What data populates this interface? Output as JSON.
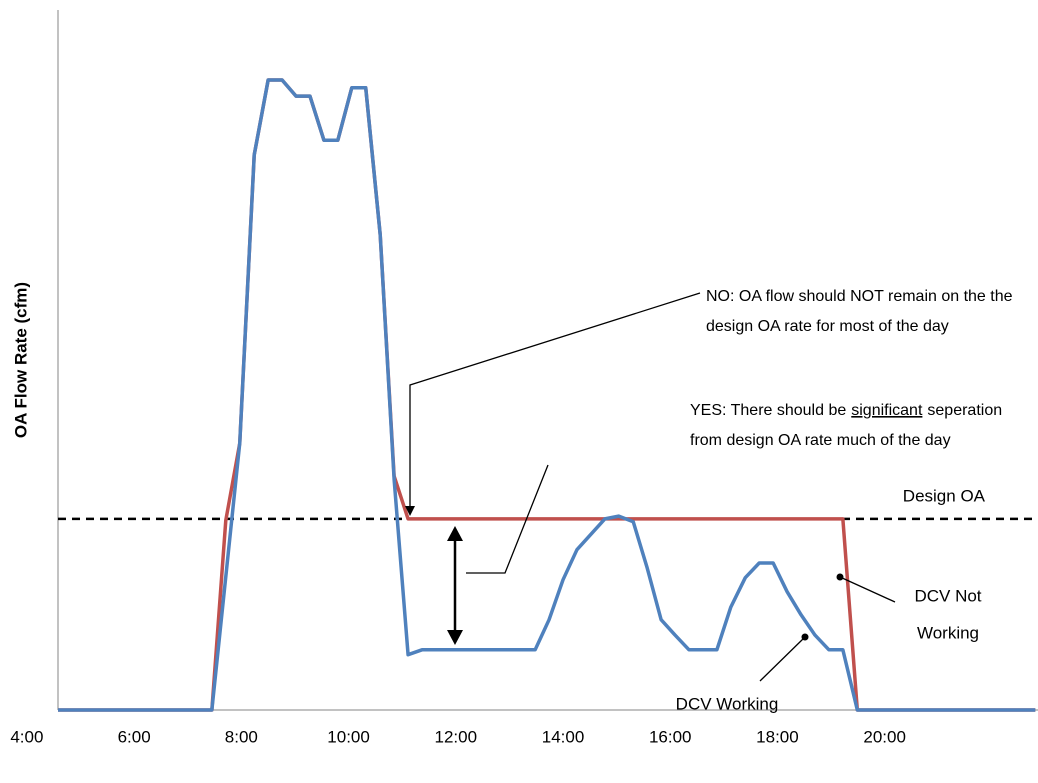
{
  "chart_data": {
    "type": "line",
    "y_label": "OA Flow Rate (cfm)",
    "xlim": [
      4.58,
      22.86
    ],
    "ylim": [
      0,
      100
    ],
    "xticks": [
      {
        "value": 4,
        "label": "4:00"
      },
      {
        "value": 6,
        "label": "6:00"
      },
      {
        "value": 8,
        "label": "8:00"
      },
      {
        "value": 10,
        "label": "10:00"
      },
      {
        "value": 12,
        "label": "12:00"
      },
      {
        "value": 14,
        "label": "14:00"
      },
      {
        "value": 16,
        "label": "16:00"
      },
      {
        "value": 18,
        "label": "18:00"
      },
      {
        "value": 20,
        "label": "20:00"
      }
    ],
    "grid": false,
    "reference_line": {
      "label": "Design OA",
      "value": 27.3,
      "color": "#000000"
    },
    "series": [
      {
        "name": "DCV Not Working",
        "color": "#c0504d",
        "x": [
          4.58,
          7.45,
          7.71,
          7.97,
          8.24,
          8.5,
          8.76,
          9.02,
          9.28,
          9.54,
          9.8,
          10.06,
          10.32,
          10.59,
          10.85,
          11.11,
          19.22,
          19.49,
          22.81
        ],
        "values": [
          0,
          0,
          27.1,
          38.1,
          79.3,
          90,
          90,
          87.7,
          87.7,
          81.4,
          81.4,
          88.9,
          88.9,
          67.9,
          33.4,
          27.3,
          27.3,
          0,
          0
        ]
      },
      {
        "name": "DCV Working",
        "color": "#4f81bd",
        "x": [
          4.58,
          7.45,
          7.97,
          8.24,
          8.5,
          8.76,
          9.02,
          9.28,
          9.54,
          9.8,
          10.06,
          10.32,
          10.59,
          10.85,
          11.11,
          11.37,
          11.63,
          13.48,
          13.74,
          14.0,
          14.26,
          14.52,
          14.78,
          15.04,
          15.31,
          15.57,
          15.83,
          16.09,
          16.35,
          16.87,
          17.13,
          17.4,
          17.66,
          17.92,
          18.18,
          18.44,
          18.7,
          18.96,
          19.22,
          19.49,
          22.81
        ],
        "values": [
          0,
          0,
          38.1,
          79.3,
          90,
          90,
          87.7,
          87.7,
          81.4,
          81.4,
          88.9,
          88.9,
          67.9,
          32.9,
          7.9,
          8.6,
          8.6,
          8.6,
          12.9,
          18.6,
          22.9,
          25.1,
          27.3,
          27.7,
          26.9,
          20.3,
          12.9,
          10.7,
          8.6,
          8.6,
          14.7,
          18.9,
          21,
          21,
          16.9,
          13.6,
          10.7,
          8.6,
          8.6,
          0,
          0
        ]
      }
    ],
    "annotations": {
      "no_line1": "NO: OA flow should NOT remain on the the",
      "no_line2": "design OA rate for most of the day",
      "yes_line1_pre": "YES: There should be",
      "yes_line1_em": "significant",
      "yes_line1_post": "seperation",
      "yes_line2": "from design OA rate much of the day",
      "not_working_line1": "DCV Not",
      "not_working_line2": "Working",
      "working": "DCV Working"
    }
  }
}
